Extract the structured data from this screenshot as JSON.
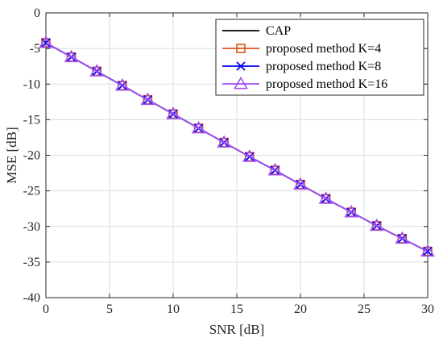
{
  "chart_data": {
    "type": "line",
    "xlabel": "SNR [dB]",
    "ylabel": "MSE [dB]",
    "xlim": [
      0,
      30
    ],
    "ylim": [
      -40,
      0
    ],
    "xticks": [
      0,
      5,
      10,
      15,
      20,
      25,
      30
    ],
    "yticks": [
      0,
      -5,
      -10,
      -15,
      -20,
      -25,
      -30,
      -35,
      -40
    ],
    "grid": true,
    "legend_position": "top-right",
    "x": [
      0,
      2,
      4,
      6,
      8,
      10,
      12,
      14,
      16,
      18,
      20,
      22,
      24,
      26,
      28,
      30
    ],
    "series": [
      {
        "name": "CAP",
        "color": "#000000",
        "marker": "none",
        "values": [
          -4.2,
          -6.2,
          -8.2,
          -10.2,
          -12.2,
          -14.2,
          -16.2,
          -18.2,
          -20.2,
          -22.1,
          -24.1,
          -26.1,
          -28.0,
          -29.9,
          -31.7,
          -33.5
        ]
      },
      {
        "name": "proposed method K=4",
        "color": "#D95319",
        "marker": "square",
        "values": [
          -4.2,
          -6.2,
          -8.2,
          -10.2,
          -12.2,
          -14.2,
          -16.2,
          -18.2,
          -20.2,
          -22.1,
          -24.1,
          -26.1,
          -28.0,
          -29.9,
          -31.7,
          -33.5
        ]
      },
      {
        "name": "proposed method K=8",
        "color": "#0000FF",
        "marker": "x",
        "values": [
          -4.2,
          -6.2,
          -8.2,
          -10.2,
          -12.2,
          -14.2,
          -16.2,
          -18.2,
          -20.2,
          -22.1,
          -24.1,
          -26.1,
          -28.0,
          -29.9,
          -31.7,
          -33.5
        ]
      },
      {
        "name": "proposed method K=16",
        "color": "#A050F0",
        "marker": "triangle",
        "values": [
          -4.2,
          -6.2,
          -8.2,
          -10.2,
          -12.2,
          -14.2,
          -16.2,
          -18.2,
          -20.2,
          -22.1,
          -24.1,
          -26.1,
          -28.0,
          -29.9,
          -31.7,
          -33.5
        ]
      }
    ]
  }
}
